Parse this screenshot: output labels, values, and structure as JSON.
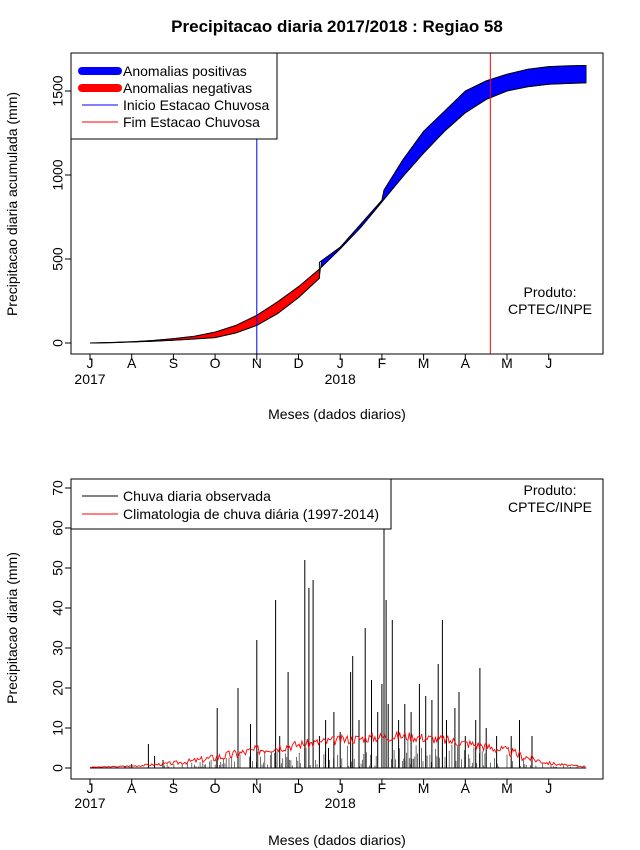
{
  "chart_data": [
    {
      "type": "area",
      "title": "Precipitacao diaria 2017/2018 : Regiao 58",
      "xlabel": "Meses (dados diarios)",
      "ylabel": "Precipitacao diaria acumulada (mm)",
      "x_tick_labels": [
        "J",
        "A",
        "S",
        "O",
        "N",
        "D",
        "J",
        "F",
        "M",
        "A",
        "M",
        "J"
      ],
      "year_labels": [
        "2017",
        "2018"
      ],
      "y_ticks": [
        0,
        500,
        1000,
        1500
      ],
      "ylim": [
        0,
        1650
      ],
      "legend_position": "top-left",
      "legend": [
        "Anomalias positivas",
        "Anomalias negativas",
        "Inicio Estacao Chuvosa",
        "Fim Estacao Chuvosa"
      ],
      "note_lines": [
        "Produto:",
        "CPTEC/INPE"
      ],
      "colors": {
        "positive": "#0000ff",
        "negative": "#ff0000",
        "onset_line": "#0000ff",
        "end_line": "#ff0000"
      },
      "onset_month_index": 4.0,
      "end_month_index": 9.6,
      "series": [
        {
          "name": "Climatologia (acumulado)",
          "x": [
            0,
            0.5,
            1,
            1.5,
            2,
            2.5,
            3,
            3.5,
            4,
            4.5,
            5,
            5.5,
            6,
            6.5,
            7,
            7.5,
            8,
            8.5,
            9,
            9.5,
            10,
            10.5,
            11,
            11.5,
            11.9
          ],
          "values": [
            0,
            3,
            8,
            15,
            26,
            40,
            65,
            105,
            165,
            245,
            335,
            440,
            560,
            690,
            840,
            990,
            1130,
            1260,
            1370,
            1450,
            1500,
            1525,
            1540,
            1545,
            1548
          ]
        },
        {
          "name": "Observado (acumulado)",
          "x": [
            0,
            0.5,
            1,
            1.5,
            2,
            2.5,
            3,
            3.5,
            4,
            4.5,
            5,
            5.5,
            5.5,
            6,
            6.5,
            7,
            7.05,
            7.5,
            8,
            8.5,
            9,
            9.5,
            10,
            10.5,
            11,
            11.5,
            11.9
          ],
          "values": [
            0,
            2,
            6,
            10,
            16,
            24,
            32,
            60,
            105,
            175,
            270,
            385,
            480,
            570,
            710,
            850,
            910,
            1090,
            1260,
            1380,
            1500,
            1560,
            1600,
            1630,
            1645,
            1650,
            1652
          ]
        }
      ]
    },
    {
      "type": "bar",
      "xlabel": "Meses (dados diarios)",
      "ylabel": "Precipitacao diaria (mm)",
      "x_tick_labels": [
        "J",
        "A",
        "S",
        "O",
        "N",
        "D",
        "J",
        "F",
        "M",
        "A",
        "M",
        "J"
      ],
      "year_labels": [
        "2017",
        "2018"
      ],
      "y_ticks": [
        0,
        10,
        20,
        30,
        40,
        50,
        60,
        70
      ],
      "ylim": [
        0,
        70
      ],
      "legend_position": "top-left",
      "legend": [
        "Chuva diaria observada",
        "Climatologia de chuva diária (1997-2014)"
      ],
      "note_lines": [
        "Produto:",
        "CPTEC/INPE"
      ],
      "colors": {
        "observed": "#000000",
        "climatology": "#ff0000"
      },
      "series": [
        {
          "name": "Chuva diaria observada",
          "x": [
            1.0,
            1.4,
            1.55,
            1.75,
            3.05,
            3.55,
            3.85,
            4.0,
            4.45,
            4.55,
            4.75,
            5.15,
            5.25,
            5.35,
            5.5,
            5.65,
            5.72,
            5.85,
            6.0,
            6.25,
            6.3,
            6.45,
            6.6,
            6.75,
            6.9,
            7.0,
            7.05,
            7.1,
            7.15,
            7.25,
            7.4,
            7.55,
            7.7,
            7.9,
            8.05,
            8.2,
            8.35,
            8.45,
            8.55,
            8.75,
            8.85,
            9.0,
            9.25,
            9.35,
            9.5,
            9.75,
            10.1,
            10.3,
            10.6
          ],
          "values": [
            1,
            6,
            3,
            2,
            15,
            20,
            11,
            32,
            42,
            8,
            24,
            52,
            45,
            47,
            8,
            12,
            5,
            14,
            9,
            24,
            28,
            12,
            35,
            22,
            14,
            21,
            60,
            42,
            16,
            37,
            12,
            16,
            14,
            21,
            18,
            17,
            26,
            37,
            12,
            15,
            19,
            8,
            12,
            25,
            10,
            8,
            8,
            12,
            8
          ]
        },
        {
          "name": "Climatologia de chuva diária (1997-2014)",
          "x": [
            0,
            0.5,
            1,
            1.5,
            2,
            2.5,
            3,
            3.5,
            4,
            4.5,
            5,
            5.5,
            6,
            6.5,
            7,
            7.5,
            8,
            8.5,
            9,
            9.5,
            10,
            10.5,
            11,
            11.5,
            11.9
          ],
          "values": [
            0.2,
            0.3,
            0.5,
            0.8,
            1.2,
            1.8,
            2.6,
            3.5,
            4.5,
            5.2,
            5.8,
            6.4,
            7.0,
            7.4,
            7.8,
            8.0,
            7.6,
            7.0,
            6.2,
            5.4,
            4.2,
            2.6,
            1.2,
            0.6,
            0.4
          ]
        }
      ]
    }
  ]
}
